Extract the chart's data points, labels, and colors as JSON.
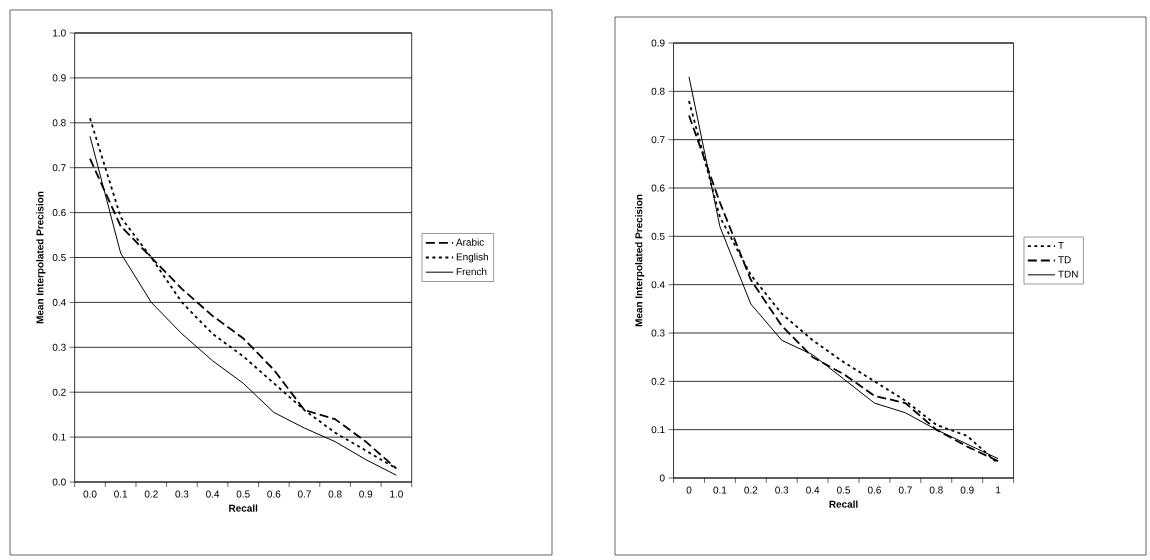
{
  "chart_data": [
    {
      "type": "line",
      "xlabel": "Recall",
      "ylabel": "Mean Interpolated Precision",
      "categories": [
        "0.0",
        "0.1",
        "0.2",
        "0.3",
        "0.4",
        "0.5",
        "0.6",
        "0.7",
        "0.8",
        "0.9",
        "1.0"
      ],
      "series": [
        {
          "name": "Arabic",
          "color": "#000000",
          "line_style": "dashed",
          "values": [
            0.72,
            0.57,
            0.5,
            0.43,
            0.37,
            0.32,
            0.25,
            0.16,
            0.14,
            0.09,
            0.03
          ]
        },
        {
          "name": "English",
          "color": "#000000",
          "line_style": "dotted",
          "values": [
            0.81,
            0.59,
            0.5,
            0.4,
            0.33,
            0.28,
            0.22,
            0.16,
            0.11,
            0.07,
            0.03
          ]
        },
        {
          "name": "French",
          "color": "#000000",
          "line_style": "solid",
          "values": [
            0.77,
            0.51,
            0.4,
            0.33,
            0.27,
            0.22,
            0.155,
            0.12,
            0.09,
            0.05,
            0.015
          ]
        }
      ],
      "ylim": [
        0,
        1
      ],
      "yticks": [
        {
          "value": 0,
          "label": "0.0"
        },
        0.1,
        0.2,
        0.3,
        0.4,
        0.5,
        0.6,
        0.7,
        0.8,
        0.9,
        {
          "value": 1,
          "label": "1.0"
        }
      ],
      "grid": "y",
      "legend": "right",
      "marker": "none"
    },
    {
      "type": "line",
      "xlabel": "Recall",
      "ylabel": "Mean Interpolated Precision",
      "categories": [
        "0",
        "0.1",
        "0.2",
        "0.3",
        "0.4",
        "0.5",
        "0.6",
        "0.7",
        "0.8",
        "0.9",
        "1"
      ],
      "series": [
        {
          "name": "T",
          "color": "#000000",
          "line_style": "dotted",
          "values": [
            0.78,
            0.54,
            0.42,
            0.34,
            0.285,
            0.24,
            0.2,
            0.16,
            0.11,
            0.087,
            0.03
          ]
        },
        {
          "name": "TD",
          "color": "#000000",
          "line_style": "dashed",
          "values": [
            0.75,
            0.57,
            0.41,
            0.315,
            0.25,
            0.215,
            0.17,
            0.155,
            0.1,
            0.065,
            0.035
          ]
        },
        {
          "name": "TDN",
          "color": "#000000",
          "line_style": "solid",
          "values": [
            0.83,
            0.52,
            0.36,
            0.285,
            0.255,
            0.205,
            0.155,
            0.135,
            0.1,
            0.07,
            0.04
          ]
        }
      ],
      "ylim": [
        0,
        0.9
      ],
      "yticks": [
        0,
        0.1,
        0.2,
        0.3,
        0.4,
        0.5,
        0.6,
        0.7,
        0.8,
        0.9
      ],
      "grid": "y",
      "legend": "right",
      "marker": "none"
    }
  ]
}
